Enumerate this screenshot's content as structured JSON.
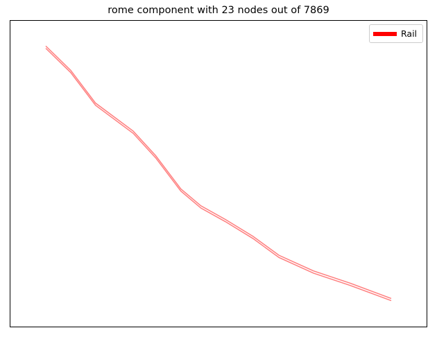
{
  "chart_data": {
    "type": "line",
    "title": "rome component with 23 nodes out of 7869",
    "xlabel": "",
    "ylabel": "",
    "legend": {
      "placement": "top-right"
    },
    "grid": false,
    "series": [
      {
        "name": "Rail",
        "color": "#ff0000",
        "x": [
          0.0,
          0.072,
          0.144,
          0.253,
          0.318,
          0.391,
          0.449,
          0.52,
          0.6,
          0.675,
          0.775,
          0.88,
          1.0
        ],
        "y": [
          1.0,
          0.904,
          0.774,
          0.663,
          0.566,
          0.434,
          0.367,
          0.313,
          0.246,
          0.171,
          0.109,
          0.061,
          0.0
        ]
      }
    ]
  }
}
